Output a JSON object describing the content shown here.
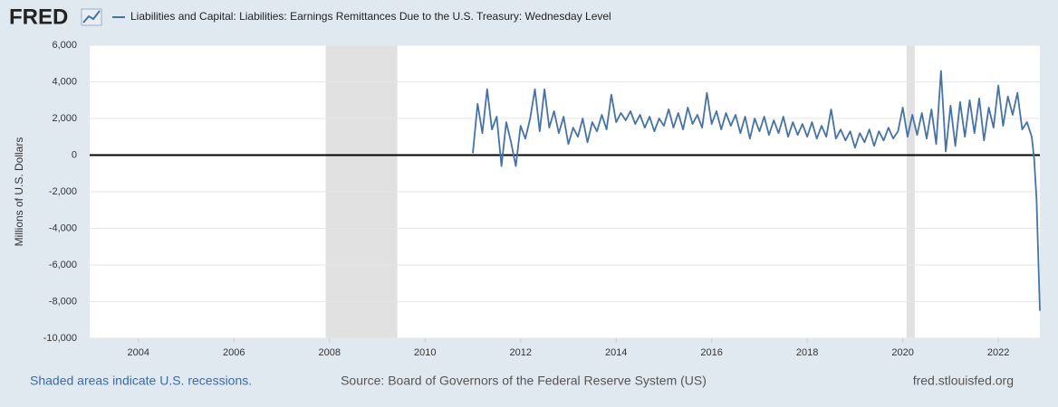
{
  "logo": "FRED",
  "footer": {
    "recession_note": "Shaded areas indicate U.S. recessions.",
    "source": "Source: Board of Governors of the Federal Reserve System (US)",
    "site": "fred.stlouisfed.org"
  },
  "chart_data": {
    "type": "line",
    "ylabel": "Millions of U.S. Dollars",
    "xlim": [
      2002.98,
      2022.87
    ],
    "xticks": [
      2004,
      2006,
      2008,
      2010,
      2012,
      2014,
      2016,
      2018,
      2020,
      2022
    ],
    "ylim": [
      -10000,
      6000
    ],
    "yticks": [
      {
        "value": -10000,
        "label": "-10,000"
      },
      {
        "value": -8000,
        "label": "-8,000"
      },
      {
        "value": -6000,
        "label": "-6,000"
      },
      {
        "value": -4000,
        "label": "-4,000"
      },
      {
        "value": -2000,
        "label": "-2,000"
      },
      0,
      {
        "value": 2000,
        "label": "2,000"
      },
      {
        "value": 4000,
        "label": "4,000"
      },
      {
        "value": 6000,
        "label": "6,000"
      }
    ],
    "grid": true,
    "recessions": [
      [
        2007.92,
        2009.42
      ],
      [
        2020.08,
        2020.25
      ]
    ],
    "recession_color": "#e1e1e1",
    "series": [
      {
        "name": "Liabilities and Capital: Liabilities: Earnings Remittances Due to the U.S. Treasury: Wednesday Level",
        "color": "#4572a7",
        "x": [
          2011.0,
          2011.1,
          2011.2,
          2011.3,
          2011.4,
          2011.5,
          2011.6,
          2011.7,
          2011.8,
          2011.9,
          2012.0,
          2012.1,
          2012.2,
          2012.3,
          2012.4,
          2012.5,
          2012.6,
          2012.7,
          2012.8,
          2012.9,
          2013.0,
          2013.1,
          2013.2,
          2013.3,
          2013.4,
          2013.5,
          2013.6,
          2013.7,
          2013.8,
          2013.9,
          2014.0,
          2014.1,
          2014.2,
          2014.3,
          2014.4,
          2014.5,
          2014.6,
          2014.7,
          2014.8,
          2014.9,
          2015.0,
          2015.1,
          2015.2,
          2015.3,
          2015.4,
          2015.5,
          2015.6,
          2015.7,
          2015.8,
          2015.9,
          2016.0,
          2016.1,
          2016.2,
          2016.3,
          2016.4,
          2016.5,
          2016.6,
          2016.7,
          2016.8,
          2016.9,
          2017.0,
          2017.1,
          2017.2,
          2017.3,
          2017.4,
          2017.5,
          2017.6,
          2017.7,
          2017.8,
          2017.9,
          2018.0,
          2018.1,
          2018.2,
          2018.3,
          2018.4,
          2018.5,
          2018.6,
          2018.7,
          2018.8,
          2018.9,
          2019.0,
          2019.1,
          2019.2,
          2019.3,
          2019.4,
          2019.5,
          2019.6,
          2019.7,
          2019.8,
          2019.9,
          2020.0,
          2020.1,
          2020.2,
          2020.3,
          2020.4,
          2020.5,
          2020.6,
          2020.7,
          2020.8,
          2020.9,
          2021.0,
          2021.1,
          2021.2,
          2021.3,
          2021.4,
          2021.5,
          2021.6,
          2021.7,
          2021.8,
          2021.9,
          2022.0,
          2022.1,
          2022.2,
          2022.3,
          2022.4,
          2022.5,
          2022.6,
          2022.7,
          2022.75,
          2022.8,
          2022.87
        ],
        "values": [
          100,
          2800,
          1200,
          3600,
          1400,
          2100,
          -600,
          1800,
          700,
          -600,
          1600,
          900,
          2000,
          3600,
          1300,
          3600,
          1500,
          2400,
          1200,
          2100,
          600,
          1500,
          1000,
          2000,
          700,
          1800,
          1300,
          2200,
          1400,
          3300,
          1800,
          2300,
          1900,
          2400,
          1700,
          2200,
          1500,
          2100,
          1300,
          2000,
          1600,
          2500,
          1500,
          2300,
          1400,
          2600,
          1700,
          2200,
          1500,
          3400,
          1700,
          2400,
          1400,
          2300,
          1600,
          2200,
          1200,
          2100,
          900,
          2000,
          1300,
          2100,
          1100,
          1900,
          1200,
          2100,
          1000,
          1800,
          1100,
          1700,
          1000,
          1800,
          900,
          1600,
          1000,
          2500,
          900,
          1400,
          800,
          1300,
          400,
          1200,
          700,
          1400,
          500,
          1300,
          800,
          1500,
          900,
          1300,
          2600,
          1000,
          2200,
          1100,
          2300,
          900,
          2500,
          600,
          4600,
          200,
          2700,
          500,
          2900,
          1000,
          3000,
          1200,
          3100,
          800,
          2600,
          1500,
          3800,
          1600,
          3200,
          2200,
          3400,
          1400,
          1800,
          1000,
          -200,
          -2400,
          -8500
        ]
      }
    ]
  }
}
